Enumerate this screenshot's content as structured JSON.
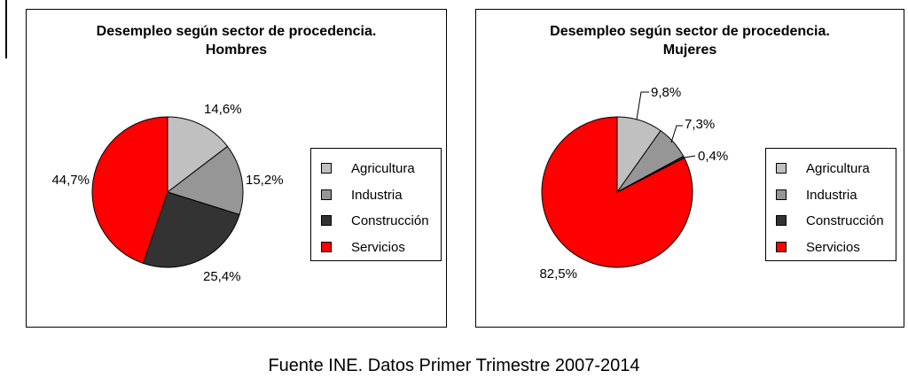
{
  "footer": "Fuente INE. Datos Primer Trimestre 2007-2014",
  "legend": [
    {
      "label": "Agricultura",
      "color": "#c0c0c0"
    },
    {
      "label": "Industria",
      "color": "#969696"
    },
    {
      "label": "Construcción",
      "color": "#333333"
    },
    {
      "label": "Servicios",
      "color": "#ff0000"
    }
  ],
  "chart_data": [
    {
      "type": "pie",
      "title": "Desempleo según sector de procedencia.",
      "subtitle": "Hombres",
      "categories": [
        "Agricultura",
        "Industria",
        "Construcción",
        "Servicios"
      ],
      "values": [
        14.6,
        15.2,
        25.4,
        44.7
      ],
      "data_labels": [
        "14,6%",
        "15,2%",
        "25,4%",
        "44,7%"
      ],
      "legend_position": "right"
    },
    {
      "type": "pie",
      "title": "Desempleo según sector de procedencia.",
      "subtitle": "Mujeres",
      "categories": [
        "Agricultura",
        "Industria",
        "Construcción",
        "Servicios"
      ],
      "values": [
        9.8,
        7.3,
        0.4,
        82.5
      ],
      "data_labels": [
        "9,8%",
        "7,3%",
        "0,4%",
        "82,5%"
      ],
      "legend_position": "right"
    }
  ]
}
